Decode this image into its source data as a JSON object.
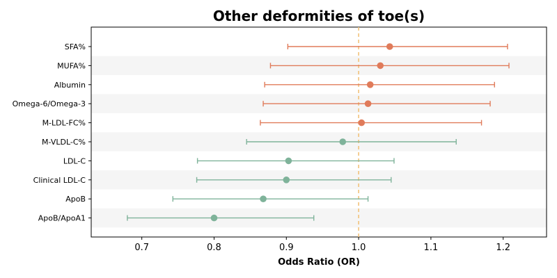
{
  "chart_data": {
    "type": "forest",
    "title": "Other deformities of toe(s)",
    "xlabel": "Odds Ratio (OR)",
    "ylabel": "",
    "xlim": [
      0.63,
      1.26
    ],
    "xticks": [
      0.7,
      0.8,
      0.9,
      1.0,
      1.1,
      1.2
    ],
    "reference_line": 1.0,
    "grid": false,
    "colors": {
      "above": "#e07b5a",
      "below": "#7fb39a",
      "reference": "#f2c27a",
      "band": "#f5f5f5"
    },
    "rows": [
      {
        "label": "SFA%",
        "or": 1.043,
        "lo": 0.902,
        "hi": 1.206
      },
      {
        "label": "MUFA%",
        "or": 1.03,
        "lo": 0.878,
        "hi": 1.208
      },
      {
        "label": "Albumin",
        "or": 1.016,
        "lo": 0.87,
        "hi": 1.188
      },
      {
        "label": "Omega-6/Omega-3",
        "or": 1.013,
        "lo": 0.868,
        "hi": 1.182
      },
      {
        "label": "M-LDL-FC%",
        "or": 1.004,
        "lo": 0.864,
        "hi": 1.17
      },
      {
        "label": "M-VLDL-C%",
        "or": 0.978,
        "lo": 0.845,
        "hi": 1.135
      },
      {
        "label": "LDL-C",
        "or": 0.903,
        "lo": 0.777,
        "hi": 1.049
      },
      {
        "label": "Clinical LDL-C",
        "or": 0.9,
        "lo": 0.776,
        "hi": 1.045
      },
      {
        "label": "ApoB",
        "or": 0.868,
        "lo": 0.743,
        "hi": 1.013
      },
      {
        "label": "ApoB/ApoA1",
        "or": 0.8,
        "lo": 0.68,
        "hi": 0.938
      }
    ]
  }
}
